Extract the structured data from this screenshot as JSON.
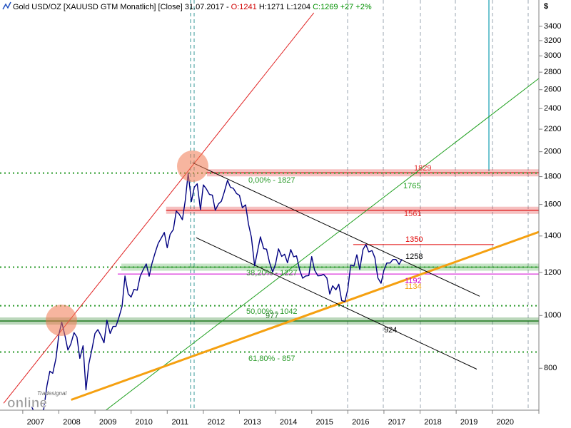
{
  "chart_data": {
    "type": "line",
    "title_parts": [
      {
        "text": "Gold USD/OZ [XAUUSD GTM  Monatlich] [Close] 31.07.2017 - ",
        "color": "#000000"
      },
      {
        "text": "O:1241",
        "color": "#d00000"
      },
      {
        "text": " H:1271 L:1204 ",
        "color": "#000000"
      },
      {
        "text": "C:1269 +27 +2%",
        "color": "#009000"
      }
    ],
    "y_unit": "$",
    "log_scale": true,
    "xlim": [
      2006.37,
      2021.29
    ],
    "xticks": [
      2007,
      2008,
      2009,
      2010,
      2011,
      2012,
      2013,
      2014,
      2015,
      2016,
      2017,
      2018,
      2019,
      2020
    ],
    "ylim": [
      670,
      3800
    ],
    "yticks": [
      800,
      1000,
      1200,
      1400,
      1600,
      1800,
      2000,
      2200,
      2400,
      2600,
      2800,
      3000,
      3200,
      3400
    ],
    "x": [
      2007.25,
      2007.33,
      2007.42,
      2007.5,
      2007.58,
      2007.67,
      2007.75,
      2007.83,
      2007.92,
      2008.0,
      2008.08,
      2008.17,
      2008.25,
      2008.33,
      2008.42,
      2008.5,
      2008.58,
      2008.67,
      2008.75,
      2008.83,
      2008.92,
      2009.0,
      2009.08,
      2009.17,
      2009.25,
      2009.33,
      2009.42,
      2009.5,
      2009.58,
      2009.67,
      2009.75,
      2009.83,
      2009.92,
      2010.0,
      2010.08,
      2010.17,
      2010.25,
      2010.33,
      2010.42,
      2010.5,
      2010.58,
      2010.67,
      2010.75,
      2010.83,
      2010.92,
      2011.0,
      2011.08,
      2011.17,
      2011.25,
      2011.33,
      2011.42,
      2011.5,
      2011.58,
      2011.67,
      2011.75,
      2011.83,
      2011.92,
      2012.0,
      2012.08,
      2012.17,
      2012.25,
      2012.33,
      2012.42,
      2012.5,
      2012.58,
      2012.67,
      2012.75,
      2012.83,
      2012.92,
      2013.0,
      2013.08,
      2013.17,
      2013.25,
      2013.33,
      2013.42,
      2013.5,
      2013.58,
      2013.67,
      2013.75,
      2013.83,
      2013.92,
      2014.0,
      2014.08,
      2014.17,
      2014.25,
      2014.33,
      2014.42,
      2014.5,
      2014.58,
      2014.67,
      2014.75,
      2014.83,
      2014.92,
      2015.0,
      2015.08,
      2015.17,
      2015.25,
      2015.33,
      2015.42,
      2015.5,
      2015.58,
      2015.67,
      2015.75,
      2015.83,
      2015.92,
      2016.0,
      2016.08,
      2016.17,
      2016.25,
      2016.33,
      2016.42,
      2016.5,
      2016.58,
      2016.67,
      2016.75,
      2016.83,
      2016.92,
      2017.0,
      2017.08,
      2017.17,
      2017.25,
      2017.33,
      2017.42,
      2017.5
    ],
    "series": [
      {
        "color": "#000080",
        "values": [
          680,
          660,
          650,
          665,
          672,
          743,
          790,
          783,
          834,
          923,
          972,
          917,
          864,
          886,
          930,
          913,
          834,
          880,
          730,
          815,
          870,
          927,
          942,
          917,
          891,
          980,
          927,
          955,
          955,
          996,
          1040,
          1182,
          1096,
          1081,
          1117,
          1113,
          1180,
          1212,
          1244,
          1181,
          1248,
          1307,
          1357,
          1386,
          1421,
          1332,
          1410,
          1439,
          1556,
          1536,
          1500,
          1628,
          1826,
          1620,
          1722,
          1746,
          1565,
          1738,
          1710,
          1669,
          1664,
          1561,
          1604,
          1622,
          1687,
          1772,
          1720,
          1713,
          1675,
          1663,
          1578,
          1597,
          1472,
          1393,
          1234,
          1313,
          1395,
          1327,
          1324,
          1253,
          1202,
          1244,
          1326,
          1284,
          1296,
          1250,
          1322,
          1282,
          1287,
          1210,
          1171,
          1182,
          1184,
          1283,
          1212,
          1183,
          1184,
          1190,
          1172,
          1095,
          1134,
          1115,
          1142,
          1065,
          1061,
          1118,
          1238,
          1233,
          1293,
          1215,
          1322,
          1350,
          1309,
          1316,
          1277,
          1173,
          1146,
          1211,
          1249,
          1249,
          1268,
          1268,
          1242,
          1269
        ]
      }
    ],
    "fib_levels": [
      {
        "label": "0,00% - 1827",
        "value": 1827,
        "color": "#2a9a2a"
      },
      {
        "label": "38,20% - 1227",
        "value": 1227,
        "color": "#2a9a2a"
      },
      {
        "label": "50,00% - 1042",
        "value": 1042,
        "color": "#2a9a2a"
      },
      {
        "label": "61,80% - 857",
        "value": 857,
        "color": "#2a9a2a"
      }
    ],
    "zones": [
      {
        "label": "1829",
        "value": 1829,
        "from": 2012.1,
        "color": "#e03030"
      },
      {
        "label": "1561",
        "value": 1561,
        "from": 2010.97,
        "color": "#e03030"
      },
      {
        "value": 1227,
        "from": 2009.73,
        "color": "#4aa84a"
      },
      {
        "label": "977",
        "value": 977,
        "from": 2006.37,
        "color": "#1e7a1e"
      }
    ],
    "levels": [
      {
        "label": "1350",
        "value": 1350,
        "from": 2016.15,
        "to": 2020.04,
        "color": "#e00000"
      },
      {
        "label": "1192",
        "value": 1192,
        "from": 2009.63,
        "to": 2021.29,
        "color": "#d000d0"
      }
    ],
    "trendlines": [
      {
        "points": [
          [
            2006.47,
            690
          ],
          [
            2015.06,
            3600
          ]
        ],
        "color": "#e02020"
      },
      {
        "label": "1765",
        "points": [
          [
            2009.29,
            669
          ],
          [
            2021.29,
            2727
          ]
        ],
        "color": "#20a020"
      },
      {
        "label": "1134",
        "points": [
          [
            2008.34,
            700
          ],
          [
            2021.29,
            1424
          ]
        ],
        "color": "#f5a010"
      },
      {
        "label": "1258",
        "points": [
          [
            2011.7,
            1909
          ],
          [
            2019.65,
            1085
          ]
        ],
        "color": "#000000"
      },
      {
        "label": "924",
        "points": [
          [
            2011.8,
            1390
          ],
          [
            2019.57,
            797
          ]
        ],
        "color": "#000000"
      }
    ],
    "logo": {
      "brand": "Tradesignal",
      "product": "online"
    }
  }
}
